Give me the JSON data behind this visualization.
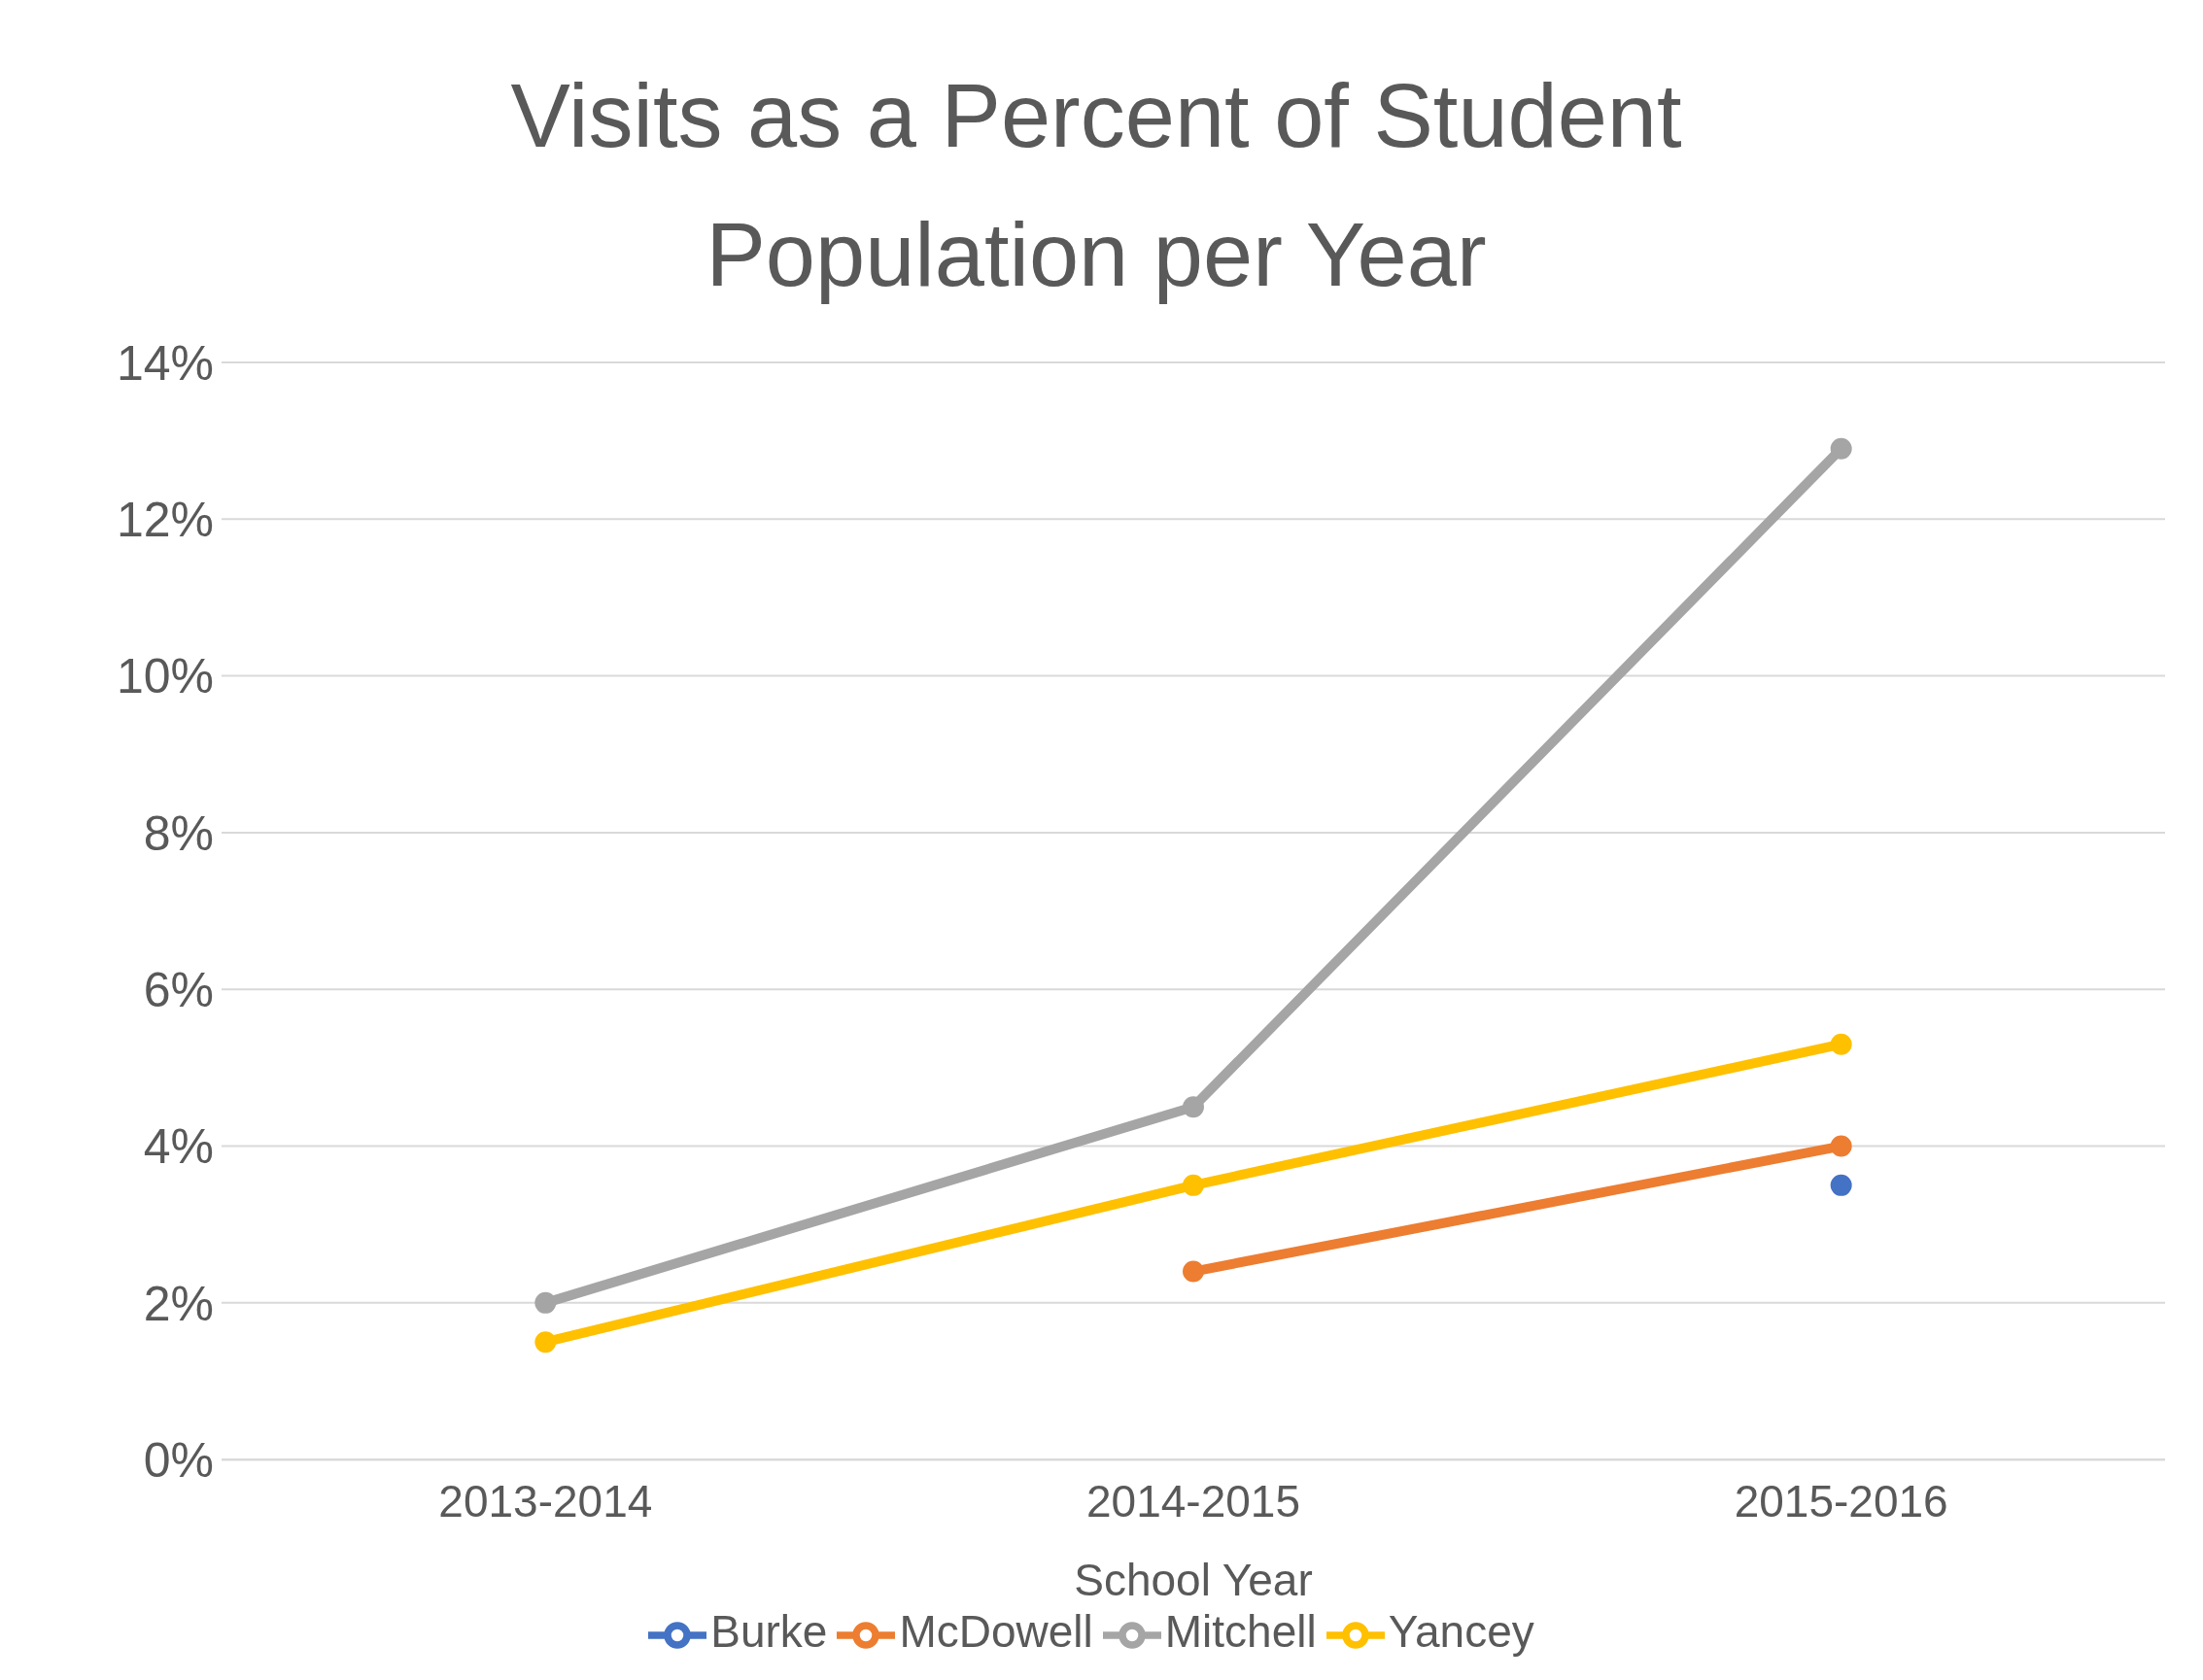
{
  "chart_data": {
    "type": "line",
    "title": "Visits as a Percent of Student Population per Year",
    "xlabel": "School Year",
    "categories": [
      "2013-2014",
      "2014-2015",
      "2015-2016"
    ],
    "series": [
      {
        "name": "Burke",
        "color": "#4472c4",
        "values": [
          null,
          null,
          3.5
        ]
      },
      {
        "name": "McDowell",
        "color": "#ed7d31",
        "values": [
          null,
          2.4,
          4.0
        ]
      },
      {
        "name": "Mitchell",
        "color": "#a5a5a5",
        "values": [
          2.0,
          4.5,
          12.9
        ]
      },
      {
        "name": "Yancey",
        "color": "#ffc000",
        "values": [
          1.5,
          3.5,
          5.3
        ]
      }
    ],
    "ylim": [
      0,
      14
    ],
    "yticks": [
      {
        "value": 0,
        "label": "0%"
      },
      {
        "value": 2,
        "label": "2%"
      },
      {
        "value": 4,
        "label": "4%"
      },
      {
        "value": 6,
        "label": "6%"
      },
      {
        "value": 8,
        "label": "8%"
      },
      {
        "value": 10,
        "label": "10%"
      },
      {
        "value": 12,
        "label": "12%"
      },
      {
        "value": 14,
        "label": "14%"
      }
    ],
    "grid": "y",
    "legend": "bottom",
    "marker": "circle",
    "line_style": "solid"
  }
}
